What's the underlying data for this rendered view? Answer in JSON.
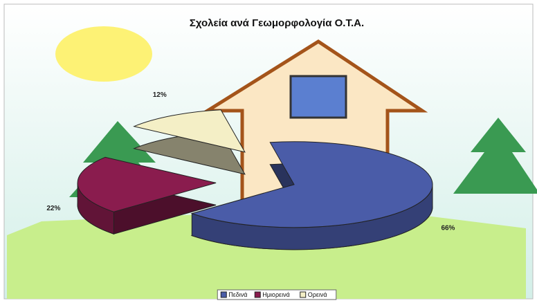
{
  "chart_data": {
    "type": "pie",
    "title": "Σχολεία ανά Γεωμορφολογία Ο.Τ.Α.",
    "categories": [
      "Πεδινά",
      "Ημιορεινά",
      "Ορεινά"
    ],
    "values": [
      66,
      22,
      12
    ],
    "value_labels": [
      "66%",
      "22%",
      "12%"
    ],
    "colors": [
      "#4a5ca8",
      "#8a1c4e",
      "#f4efc6"
    ],
    "legend": "bottom"
  }
}
